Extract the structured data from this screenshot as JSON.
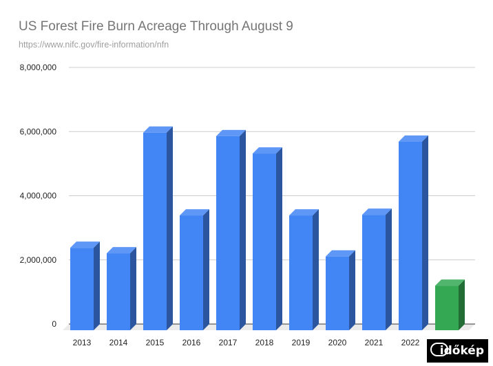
{
  "chart_data": {
    "type": "bar",
    "style": "3d",
    "title": "US Forest Fire Burn Acreage Through August 9",
    "subtitle": "https://www.nifc.gov/fire-information/nfn",
    "xlabel": "",
    "ylabel": "",
    "categories": [
      "2013",
      "2014",
      "2015",
      "2016",
      "2017",
      "2018",
      "2019",
      "2020",
      "2021",
      "2022",
      ""
    ],
    "values": [
      2570000,
      2400000,
      6160000,
      3580000,
      6050000,
      5510000,
      3580000,
      2300000,
      3600000,
      5880000,
      1390000
    ],
    "bar_colors": [
      "#4285f4",
      "#4285f4",
      "#4285f4",
      "#4285f4",
      "#4285f4",
      "#4285f4",
      "#4285f4",
      "#4285f4",
      "#4285f4",
      "#4285f4",
      "#34a853"
    ],
    "ylim": [
      0,
      8000000
    ],
    "yticks": [
      0,
      2000000,
      4000000,
      6000000,
      8000000
    ],
    "ytick_labels": [
      "0",
      "2,000,000",
      "4,000,000",
      "6,000,000",
      "8,000,000"
    ],
    "grid": true,
    "legend": "none"
  },
  "watermark": "időkép"
}
